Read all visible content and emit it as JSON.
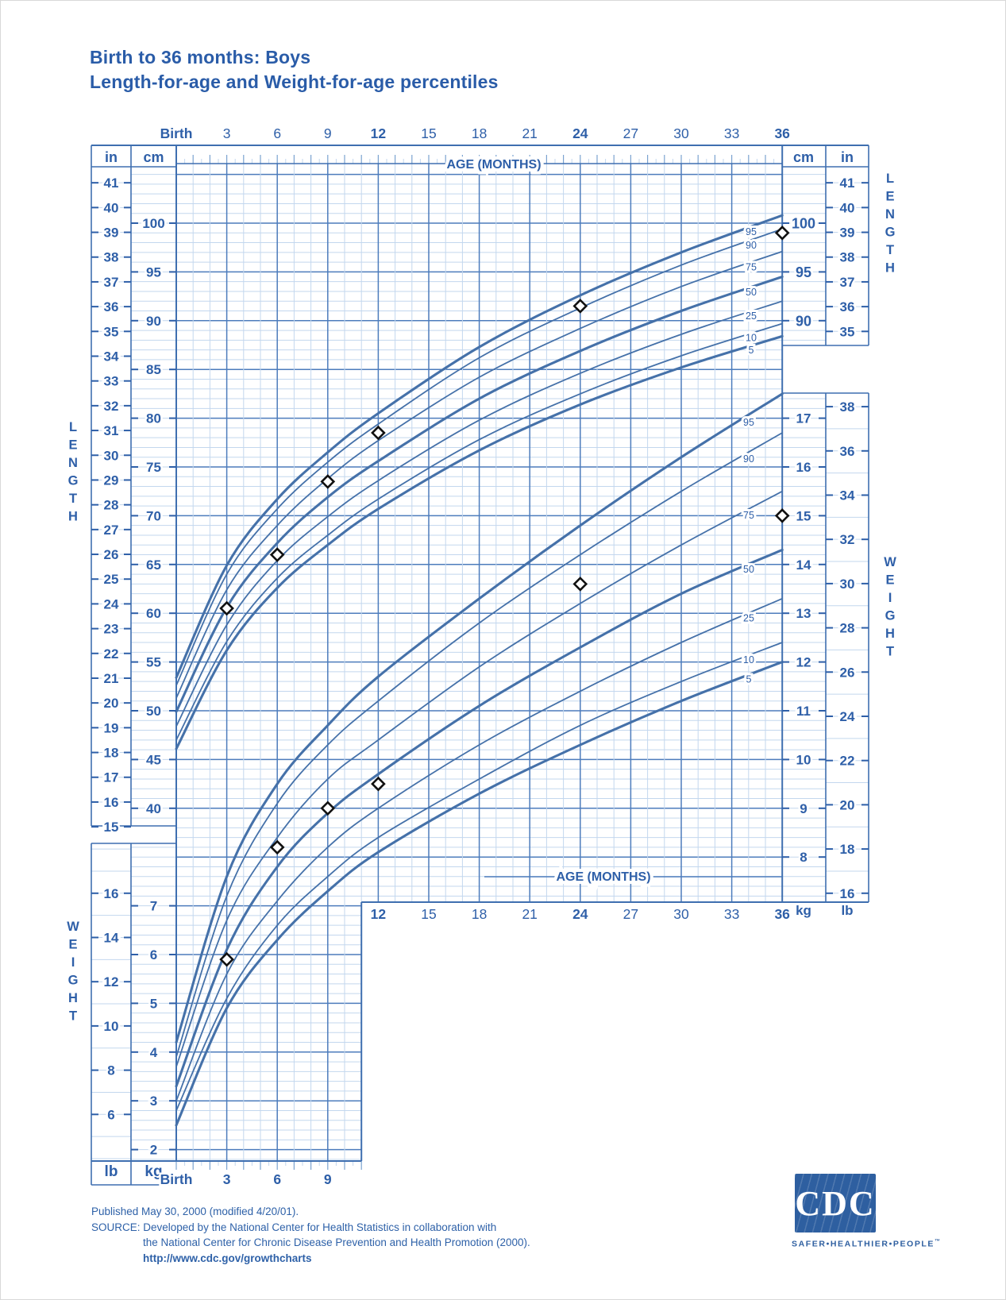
{
  "page": {
    "title_line1": "Birth to 36 months: Boys",
    "title_line2": "Length-for-age and Weight-for-age percentiles"
  },
  "colors": {
    "label_blue": "#2e5fa8",
    "title_blue": "#2a5ca8",
    "grid_major": "#4d7cbc",
    "grid_minor": "#c3d7ee",
    "grid_medium": "#7ba3d0",
    "border": "#3f6fb0",
    "curve": "#4571a9",
    "marker": "#111111",
    "logo_blue": "#2e5fa0"
  },
  "labels": {
    "age_axis": "AGE (MONTHS)",
    "length_word": "LENGTH",
    "weight_word": "WEIGHT",
    "cm": "cm",
    "in": "in",
    "kg": "kg",
    "lb": "lb"
  },
  "chart_data": {
    "type": "line",
    "title": "Birth to 36 months: Boys — Length-for-age and Weight-for-age percentiles",
    "x_axis": {
      "label": "AGE (MONTHS)",
      "min_months": 0,
      "max_months": 36,
      "major_tick_interval": 3,
      "top_tick_labels": [
        "Birth",
        "3",
        "6",
        "9",
        "12",
        "15",
        "18",
        "21",
        "24",
        "27",
        "30",
        "33",
        "36"
      ],
      "bottom_left_tick_labels": [
        "Birth",
        "3",
        "6",
        "9"
      ],
      "bottom_right_tick_labels": [
        "12",
        "15",
        "18",
        "21",
        "24",
        "27",
        "30",
        "33",
        "36"
      ],
      "bold_tick_labels": [
        "Birth",
        "12",
        "24",
        "36"
      ]
    },
    "length_axis": {
      "units_primary": "cm",
      "units_secondary": "in",
      "cm_ticks_left": [
        100,
        95,
        90,
        85,
        80,
        75,
        70,
        65,
        60,
        55,
        50,
        45,
        40
      ],
      "in_ticks_left": [
        41,
        40,
        39,
        38,
        37,
        36,
        35,
        34,
        33,
        32,
        31,
        30,
        29,
        28,
        27,
        26,
        25,
        24,
        23,
        22,
        21,
        20,
        19,
        18,
        17,
        16,
        15
      ],
      "cm_ticks_right": [
        100,
        95,
        90
      ],
      "in_ticks_right": [
        41,
        40,
        39,
        38,
        37,
        36,
        35
      ]
    },
    "weight_axis": {
      "units_primary": "kg",
      "units_secondary": "lb",
      "kg_ticks_left": [
        7,
        6,
        5,
        4,
        3,
        2
      ],
      "lb_ticks_left": [
        16,
        14,
        12,
        10,
        8,
        6
      ],
      "kg_ticks_right": [
        17,
        16,
        15,
        14,
        13,
        12,
        11,
        10,
        9,
        8
      ],
      "lb_ticks_right": [
        38,
        36,
        34,
        32,
        30,
        28,
        26,
        24,
        22,
        20,
        18,
        16
      ]
    },
    "percentiles": [
      5,
      10,
      25,
      50,
      75,
      90,
      95
    ],
    "bold_percentiles": [
      5,
      50,
      95
    ],
    "curve_ages_months": [
      0,
      3,
      6,
      9,
      12,
      18,
      24,
      30,
      36
    ],
    "length_for_age_cm": {
      "p5": [
        46.1,
        56.2,
        62.6,
        67.0,
        70.7,
        76.7,
        81.4,
        85.2,
        88.4
      ],
      "p10": [
        47.0,
        57.1,
        63.6,
        68.0,
        71.7,
        77.8,
        82.5,
        86.4,
        89.7
      ],
      "p25": [
        48.4,
        58.8,
        65.4,
        69.9,
        73.6,
        79.8,
        84.6,
        88.6,
        92.0
      ],
      "p50": [
        49.9,
        60.6,
        67.2,
        71.9,
        75.6,
        82.0,
        86.9,
        91.0,
        94.5
      ],
      "p75": [
        51.3,
        62.4,
        69.0,
        73.8,
        77.7,
        84.2,
        89.2,
        93.5,
        97.1
      ],
      "p90": [
        52.6,
        64.0,
        70.7,
        75.5,
        79.4,
        86.2,
        91.3,
        95.7,
        99.4
      ],
      "p95": [
        53.4,
        64.9,
        71.7,
        76.5,
        80.5,
        87.3,
        92.6,
        97.0,
        100.8
      ]
    },
    "weight_for_age_kg": {
      "p5": [
        2.5,
        4.9,
        6.3,
        7.3,
        8.1,
        9.3,
        10.3,
        11.2,
        12.0
      ],
      "p10": [
        2.8,
        5.1,
        6.6,
        7.6,
        8.4,
        9.6,
        10.7,
        11.6,
        12.4
      ],
      "p25": [
        3.0,
        5.6,
        7.1,
        8.2,
        9.0,
        10.3,
        11.4,
        12.4,
        13.3
      ],
      "p50": [
        3.3,
        6.1,
        7.8,
        8.9,
        9.7,
        11.1,
        12.3,
        13.4,
        14.3
      ],
      "p75": [
        3.7,
        6.7,
        8.4,
        9.6,
        10.4,
        11.9,
        13.2,
        14.4,
        15.5
      ],
      "p90": [
        3.9,
        7.2,
        9.1,
        10.3,
        11.2,
        12.8,
        14.2,
        15.5,
        16.7
      ],
      "p95": [
        4.2,
        7.6,
        9.5,
        10.7,
        11.7,
        13.3,
        14.8,
        16.2,
        17.5
      ]
    },
    "patient_data": {
      "marker": "diamond",
      "ages_months": [
        3,
        6,
        9,
        12,
        24,
        36
      ],
      "length_cm": [
        60.5,
        66,
        73.5,
        78.5,
        91.5,
        99
      ],
      "weight_kg": [
        5.9,
        8.2,
        9.0,
        9.5,
        13.6,
        15.0
      ]
    }
  },
  "footer": {
    "line1": "Published May 30, 2000 (modified 4/20/01).",
    "line2": "SOURCE: Developed by the National Center for Health Statistics in collaboration with",
    "line3": "the National Center for Chronic Disease Prevention and Health Promotion (2000).",
    "line4": "http://www.cdc.gov/growthcharts"
  },
  "logo": {
    "cdc": "CDC",
    "tagline": "SAFER•HEALTHIER•PEOPLE",
    "tm": "™"
  }
}
